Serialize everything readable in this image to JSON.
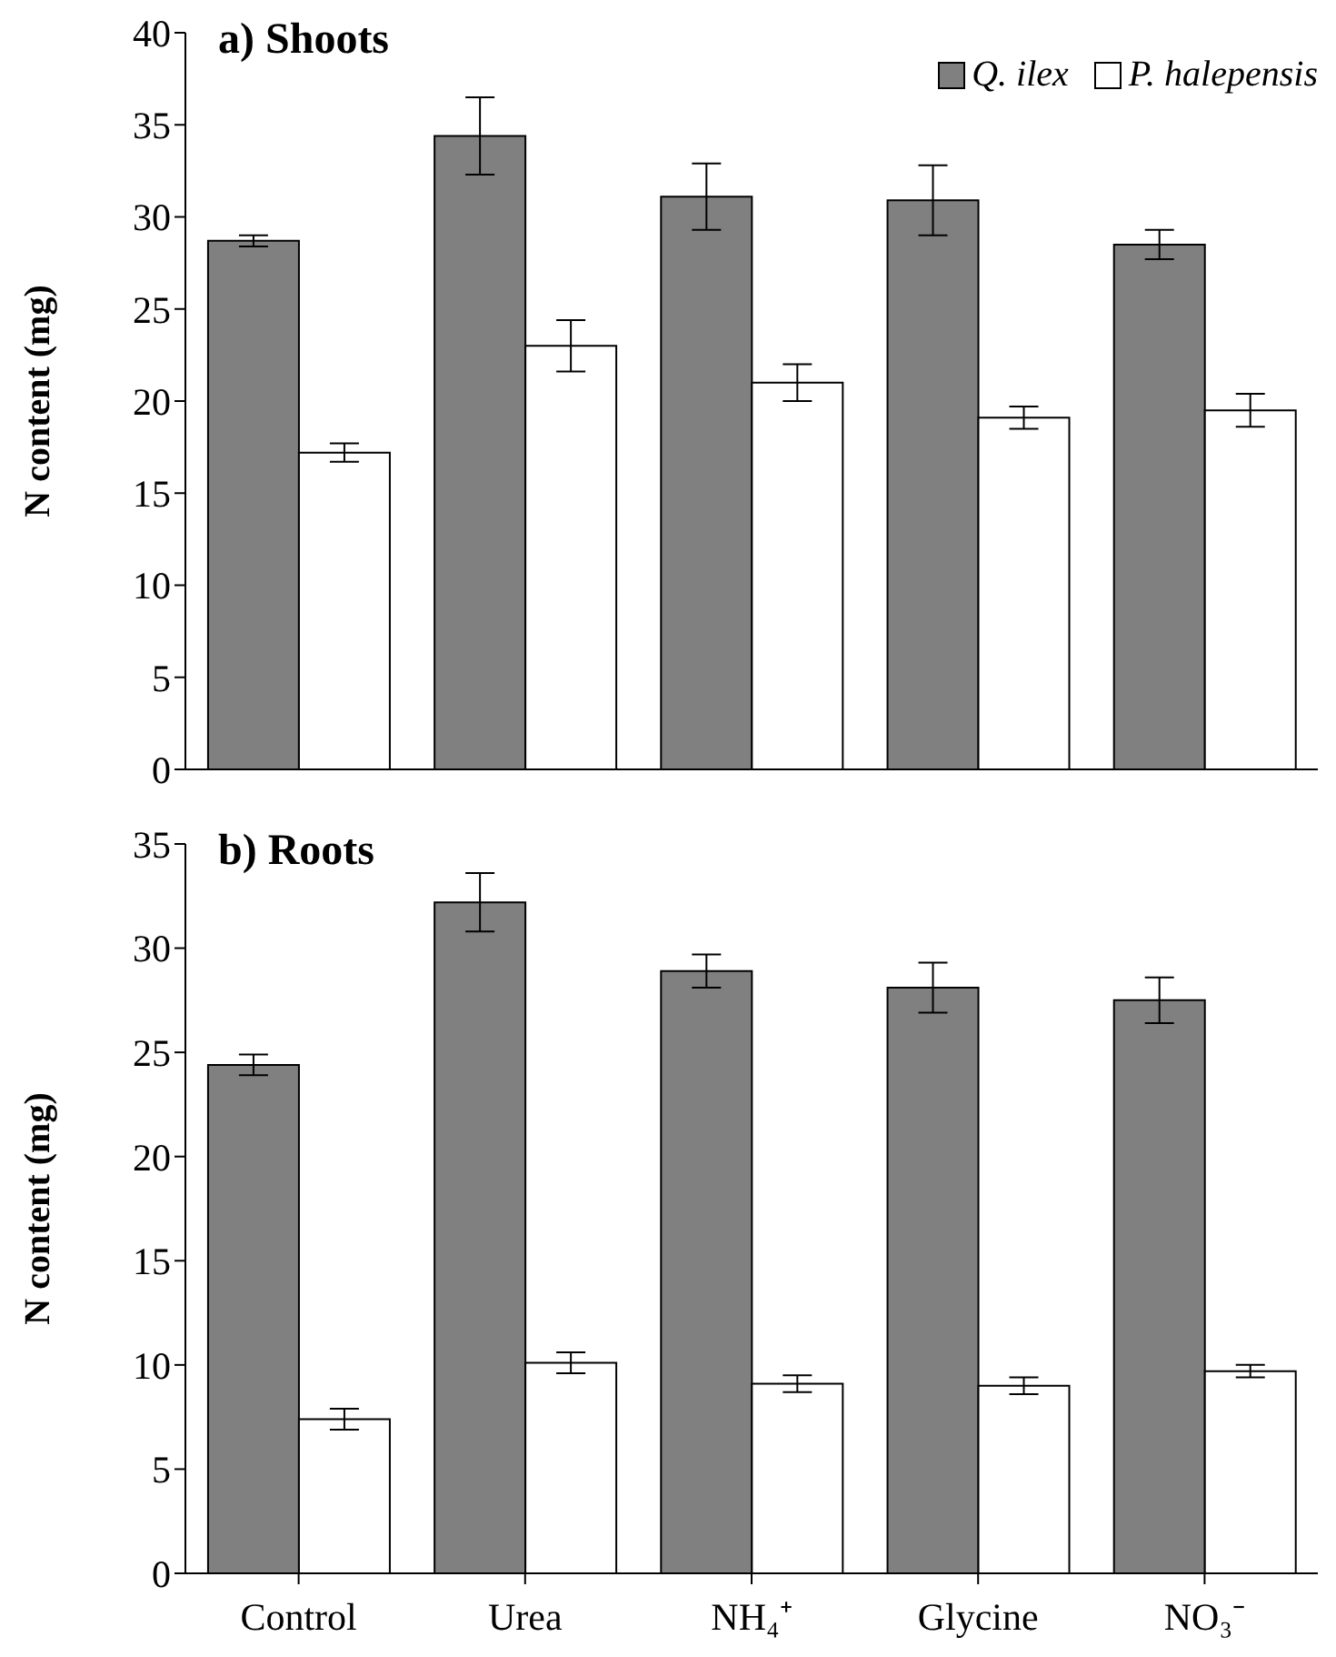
{
  "chart_data": [
    {
      "type": "bar",
      "title": "a) Shoots",
      "ylabel": "N content (mg)",
      "categories": [
        null,
        null,
        null,
        null,
        null
      ],
      "ylim": [
        0,
        40
      ],
      "yticks": [
        0,
        5,
        10,
        15,
        20,
        25,
        30,
        35,
        40
      ],
      "legend": "top right",
      "tick_labels": "y",
      "series": [
        {
          "name": "Q. ilex",
          "color": "#808080",
          "values": [
            28.7,
            34.4,
            31.1,
            30.9,
            28.5
          ],
          "errors": [
            0.3,
            2.1,
            1.8,
            1.9,
            0.8
          ]
        },
        {
          "name": "P. halepensis",
          "color": "#ffffff",
          "values": [
            17.2,
            23.0,
            21.0,
            19.1,
            19.5
          ],
          "errors": [
            0.5,
            1.4,
            1.0,
            0.6,
            0.9
          ]
        }
      ]
    },
    {
      "type": "bar",
      "title": "b) Roots",
      "ylabel": "N content (mg)",
      "categories": [
        "Control",
        "Urea",
        "NH₄⁺",
        "Glycine",
        "NO₃⁻"
      ],
      "ylim": [
        0,
        35
      ],
      "yticks": [
        0,
        5,
        10,
        15,
        20,
        25,
        30,
        35
      ],
      "series": [
        {
          "color": "#808080",
          "values": [
            24.4,
            32.2,
            28.9,
            28.1,
            27.5
          ],
          "errors": [
            0.5,
            1.4,
            0.8,
            1.2,
            1.1
          ]
        },
        {
          "color": "#ffffff",
          "values": [
            7.4,
            10.1,
            9.1,
            9.0,
            9.7
          ],
          "errors": [
            0.5,
            0.5,
            0.4,
            0.4,
            0.3
          ]
        }
      ]
    }
  ]
}
